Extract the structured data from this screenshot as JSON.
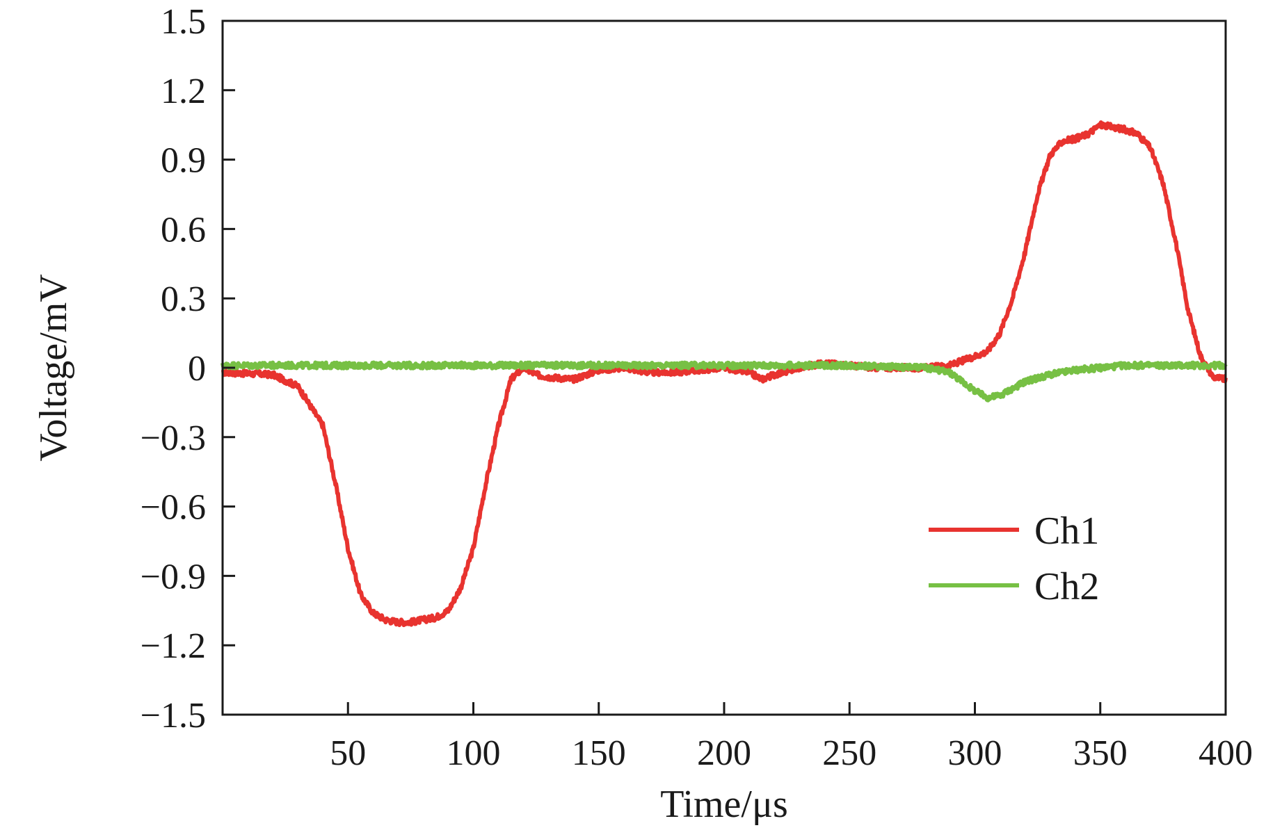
{
  "chart_data": {
    "type": "line",
    "title": "",
    "xlabel": "Time/μs",
    "ylabel": "Voltage/mV",
    "xlim": [
      0,
      400
    ],
    "ylim": [
      -1.5,
      1.5
    ],
    "x_ticks": [
      50,
      100,
      150,
      200,
      250,
      300,
      350,
      400
    ],
    "x_tick_labels": [
      "50",
      "100",
      "150",
      "200",
      "250",
      "300",
      "350",
      "400"
    ],
    "y_ticks": [
      1.5,
      1.2,
      0.9,
      0.6,
      0.3,
      0,
      -0.3,
      -0.6,
      -0.9,
      -1.2,
      -1.5
    ],
    "y_tick_labels": [
      "1.5",
      "1.2",
      "0.9",
      "0.6",
      "0.3",
      "0",
      "−0.3",
      "−0.6",
      "−0.9",
      "−1.2",
      "−1.5"
    ],
    "grid": false,
    "legend_position": "lower-right",
    "series": [
      {
        "name": "Ch1",
        "color": "#e8332f",
        "x": [
          0,
          20,
          30,
          40,
          45,
          50,
          55,
          60,
          65,
          70,
          75,
          80,
          85,
          90,
          95,
          100,
          105,
          110,
          115,
          120,
          125,
          130,
          140,
          150,
          160,
          170,
          180,
          190,
          200,
          210,
          215,
          220,
          230,
          240,
          250,
          260,
          270,
          280,
          290,
          295,
          300,
          305,
          310,
          315,
          320,
          325,
          330,
          335,
          340,
          345,
          350,
          355,
          360,
          365,
          370,
          375,
          380,
          385,
          390,
          395,
          400
        ],
        "y": [
          -0.02,
          -0.03,
          -0.08,
          -0.25,
          -0.5,
          -0.78,
          -0.98,
          -1.06,
          -1.09,
          -1.1,
          -1.1,
          -1.09,
          -1.08,
          -1.05,
          -0.95,
          -0.78,
          -0.5,
          -0.25,
          -0.05,
          0.0,
          -0.03,
          -0.04,
          -0.05,
          -0.01,
          0.0,
          -0.02,
          -0.02,
          -0.01,
          0.0,
          -0.02,
          -0.05,
          -0.03,
          0.0,
          0.02,
          0.01,
          0.0,
          0.0,
          0.0,
          0.01,
          0.03,
          0.05,
          0.07,
          0.15,
          0.3,
          0.5,
          0.75,
          0.92,
          0.98,
          0.99,
          1.01,
          1.05,
          1.04,
          1.03,
          1.01,
          0.95,
          0.8,
          0.55,
          0.25,
          0.05,
          -0.04,
          -0.05
        ]
      },
      {
        "name": "Ch2",
        "color": "#77c044",
        "x": [
          0,
          50,
          100,
          150,
          200,
          250,
          280,
          290,
          295,
          300,
          305,
          310,
          315,
          320,
          330,
          340,
          350,
          360,
          370,
          380,
          390,
          400
        ],
        "y": [
          0.01,
          0.01,
          0.01,
          0.01,
          0.01,
          0.01,
          0.0,
          -0.02,
          -0.06,
          -0.1,
          -0.13,
          -0.12,
          -0.09,
          -0.06,
          -0.03,
          -0.01,
          0.0,
          0.01,
          0.01,
          0.01,
          0.01,
          0.01
        ]
      }
    ]
  }
}
